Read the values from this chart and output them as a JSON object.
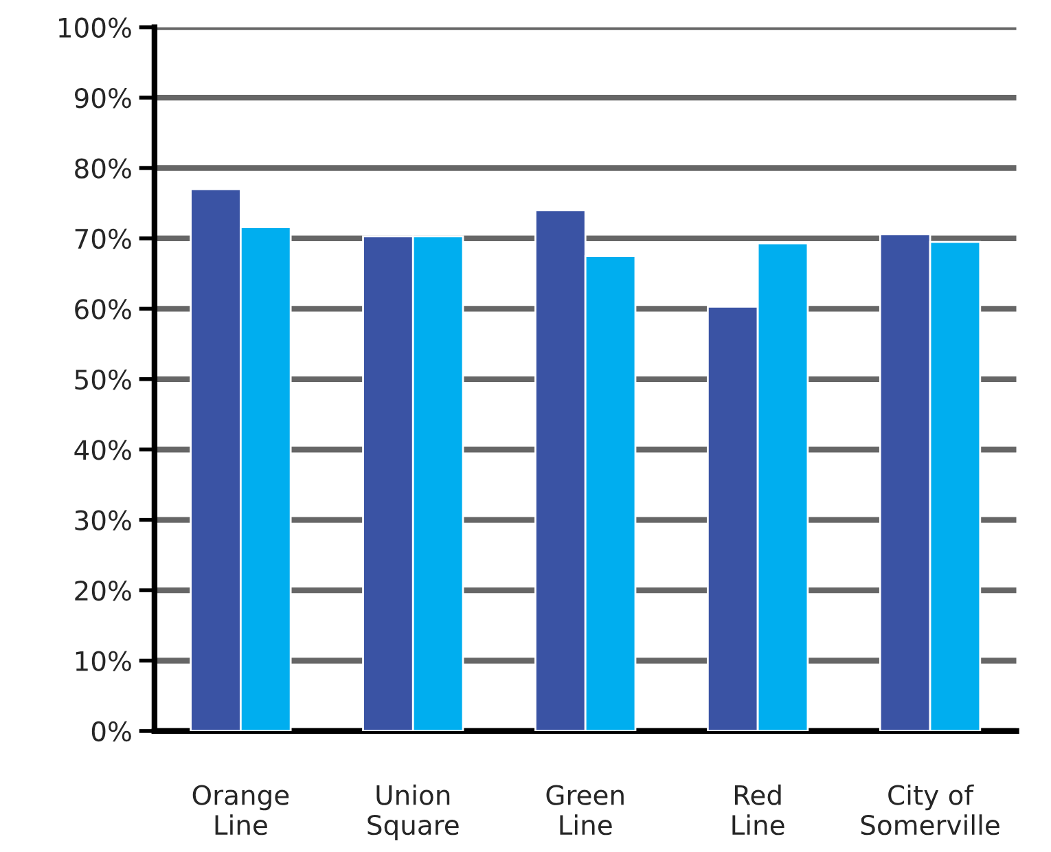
{
  "chart_data": {
    "type": "bar",
    "categories": [
      "Orange\nLine",
      "Union\nSquare",
      "Green\nLine",
      "Red\nLine",
      "City of\nSomerville"
    ],
    "series": [
      {
        "color": "#3a53a4",
        "values": [
          77,
          70.3,
          74,
          60.3,
          70.6
        ]
      },
      {
        "color": "#00aeef",
        "values": [
          71.6,
          70.3,
          67.5,
          69.3,
          69.5
        ]
      }
    ],
    "ylim": [
      0,
      100
    ],
    "yticks": [
      {
        "value": 0,
        "label": "0%"
      },
      {
        "value": 10,
        "label": "10%"
      },
      {
        "value": 20,
        "label": "20%"
      },
      {
        "value": 30,
        "label": "30%"
      },
      {
        "value": 40,
        "label": "40%"
      },
      {
        "value": 50,
        "label": "50%"
      },
      {
        "value": 60,
        "label": "60%"
      },
      {
        "value": 70,
        "label": "70%"
      },
      {
        "value": 80,
        "label": "80%"
      },
      {
        "value": 90,
        "label": "90%"
      },
      {
        "value": 100,
        "label": "100%"
      }
    ],
    "grid": "y"
  }
}
